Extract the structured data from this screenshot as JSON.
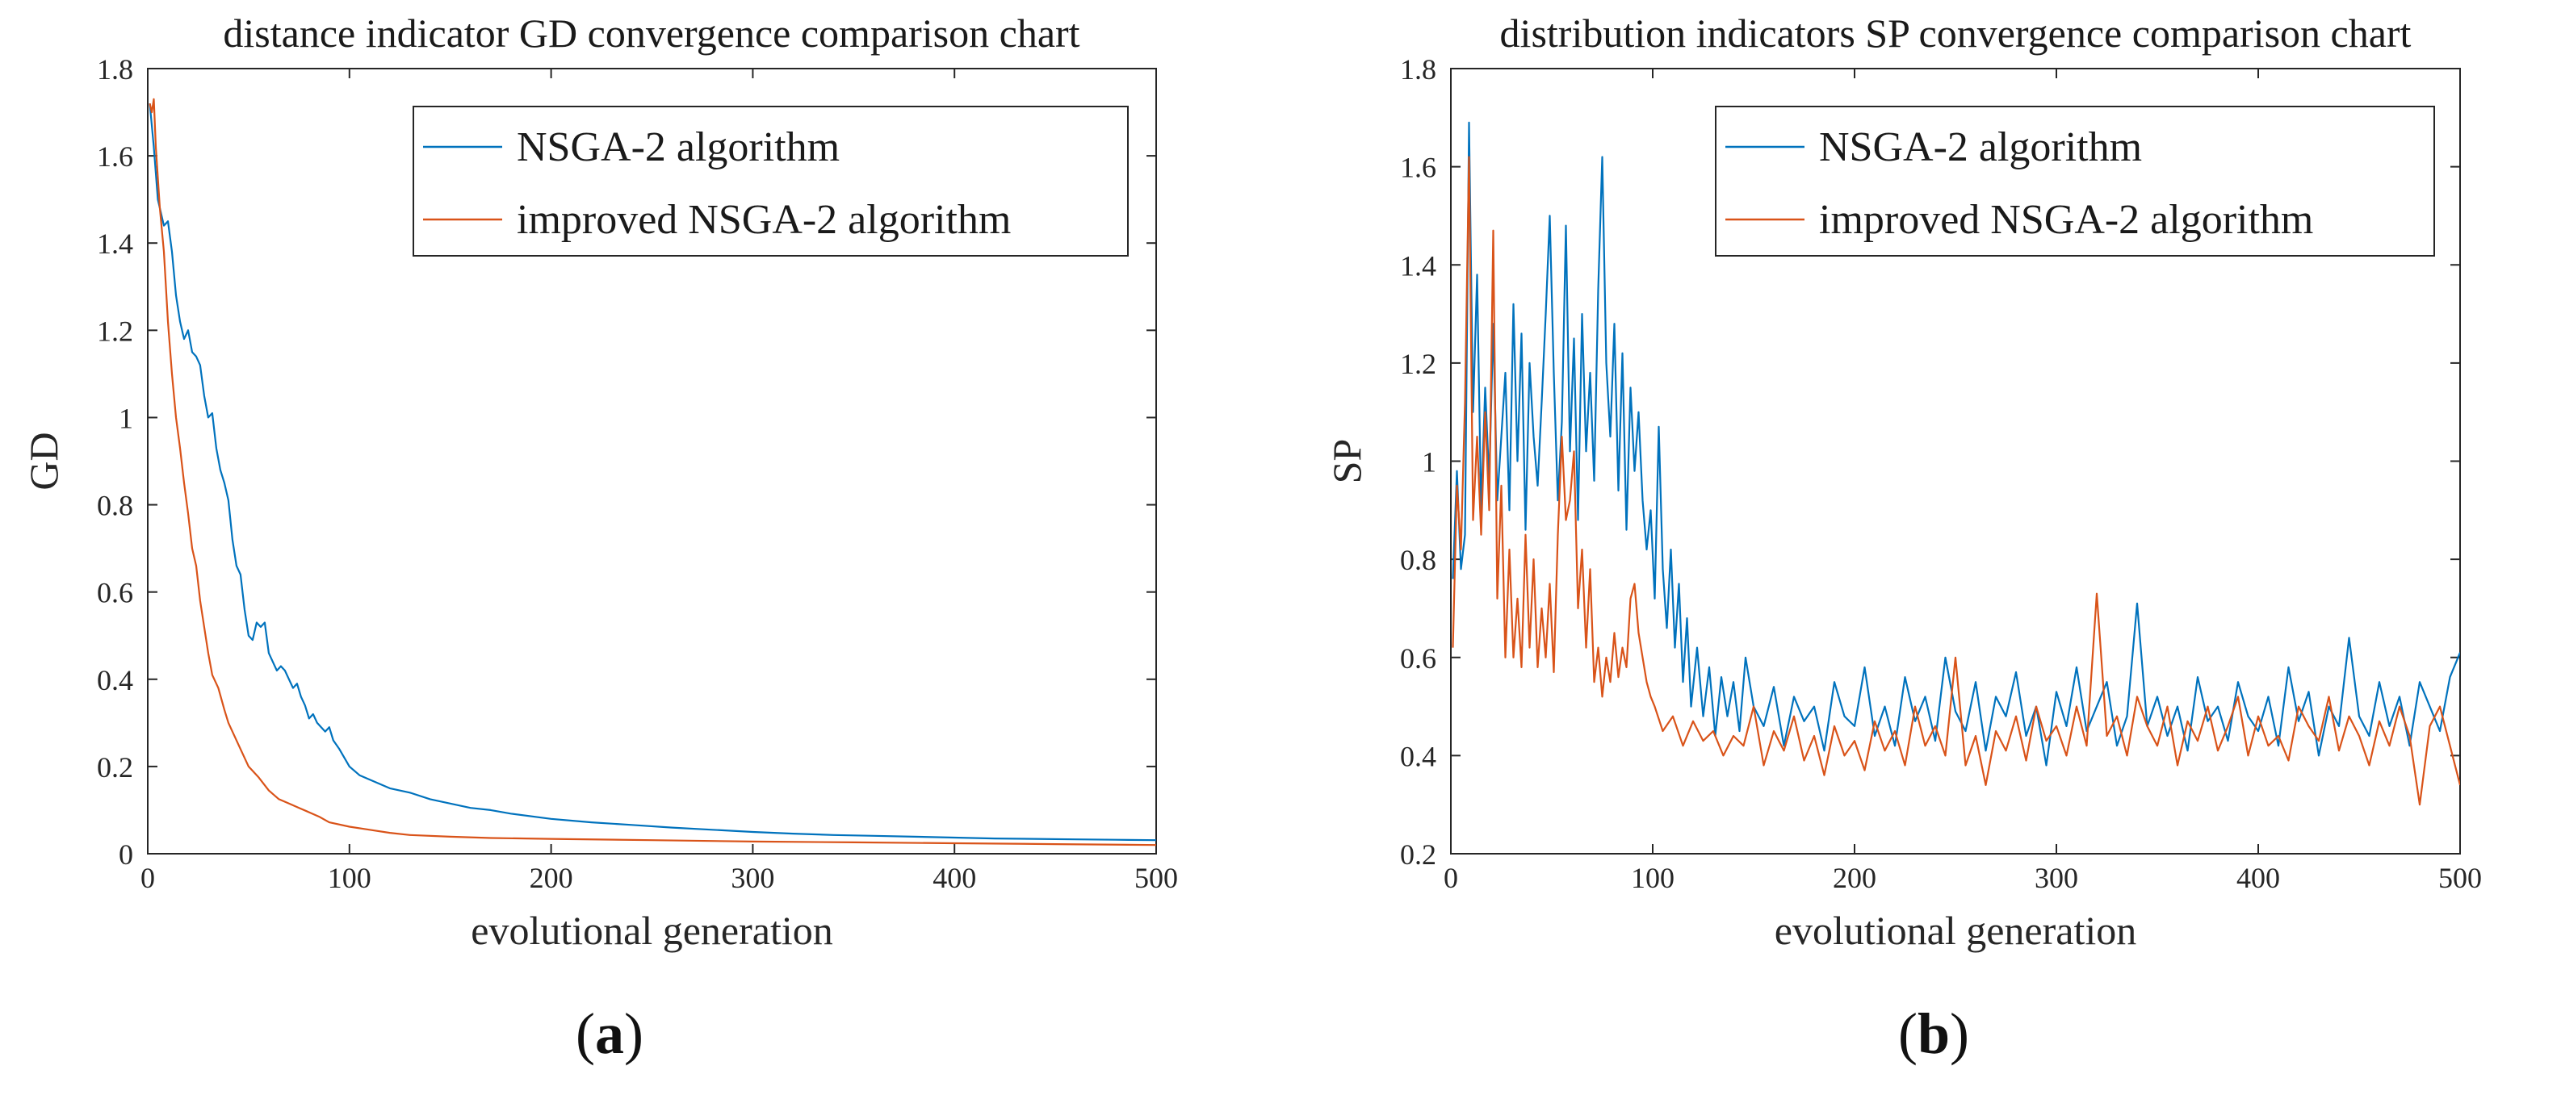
{
  "panels": [
    {
      "label_open": "(",
      "label_letter": "a",
      "label_close": ")"
    },
    {
      "label_open": "(",
      "label_letter": "b",
      "label_close": ")"
    }
  ],
  "chart_data": [
    {
      "type": "line",
      "title": "distance indicator GD convergence comparison chart",
      "xlabel": "evolutional generation",
      "ylabel": "GD",
      "xlim": [
        0,
        500
      ],
      "ylim": [
        0,
        1.8
      ],
      "xticks": [
        0,
        100,
        200,
        300,
        400,
        500
      ],
      "yticks": [
        0,
        0.2,
        0.4,
        0.6,
        0.8,
        1,
        1.2,
        1.4,
        1.6,
        1.8
      ],
      "legend_position": "top-right",
      "series": [
        {
          "name": "NSGA-2 algorithm",
          "color": "#0072BD",
          "x": [
            1,
            3,
            5,
            8,
            10,
            12,
            14,
            16,
            18,
            20,
            22,
            24,
            26,
            28,
            30,
            32,
            34,
            36,
            38,
            40,
            42,
            44,
            46,
            48,
            50,
            52,
            54,
            56,
            58,
            60,
            62,
            64,
            66,
            68,
            70,
            72,
            74,
            76,
            78,
            80,
            82,
            84,
            86,
            88,
            90,
            92,
            95,
            100,
            105,
            110,
            120,
            130,
            140,
            150,
            160,
            170,
            180,
            200,
            220,
            240,
            260,
            280,
            300,
            320,
            340,
            360,
            380,
            400,
            420,
            440,
            460,
            480,
            500
          ],
          "y": [
            1.72,
            1.62,
            1.5,
            1.44,
            1.45,
            1.38,
            1.28,
            1.22,
            1.18,
            1.2,
            1.15,
            1.14,
            1.12,
            1.05,
            1.0,
            1.01,
            0.93,
            0.88,
            0.85,
            0.81,
            0.72,
            0.66,
            0.64,
            0.56,
            0.5,
            0.49,
            0.53,
            0.52,
            0.53,
            0.46,
            0.44,
            0.42,
            0.43,
            0.42,
            0.4,
            0.38,
            0.39,
            0.36,
            0.34,
            0.31,
            0.32,
            0.3,
            0.29,
            0.28,
            0.29,
            0.26,
            0.24,
            0.2,
            0.18,
            0.17,
            0.15,
            0.14,
            0.125,
            0.115,
            0.105,
            0.1,
            0.092,
            0.08,
            0.072,
            0.066,
            0.06,
            0.055,
            0.05,
            0.046,
            0.043,
            0.041,
            0.039,
            0.037,
            0.035,
            0.034,
            0.033,
            0.032,
            0.031
          ]
        },
        {
          "name": "improved NSGA-2 algorithm",
          "color": "#D95319",
          "x": [
            1,
            2,
            3,
            4,
            6,
            8,
            10,
            12,
            14,
            16,
            18,
            20,
            22,
            24,
            26,
            28,
            30,
            32,
            35,
            38,
            40,
            45,
            50,
            55,
            60,
            65,
            70,
            75,
            80,
            85,
            90,
            100,
            110,
            120,
            130,
            150,
            170,
            200,
            250,
            300,
            350,
            400,
            450,
            500
          ],
          "y": [
            1.72,
            1.7,
            1.73,
            1.62,
            1.48,
            1.38,
            1.22,
            1.1,
            1.0,
            0.93,
            0.85,
            0.78,
            0.7,
            0.66,
            0.58,
            0.52,
            0.46,
            0.41,
            0.38,
            0.33,
            0.3,
            0.25,
            0.2,
            0.175,
            0.145,
            0.125,
            0.115,
            0.105,
            0.095,
            0.085,
            0.072,
            0.062,
            0.055,
            0.048,
            0.043,
            0.039,
            0.036,
            0.034,
            0.031,
            0.028,
            0.026,
            0.024,
            0.022,
            0.02
          ]
        }
      ]
    },
    {
      "type": "line",
      "title": "distribution indicators SP convergence comparison chart",
      "xlabel": "evolutional generation",
      "ylabel": "SP",
      "xlim": [
        0,
        500
      ],
      "ylim": [
        0.2,
        1.8
      ],
      "xticks": [
        0,
        100,
        200,
        300,
        400,
        500
      ],
      "yticks": [
        0.2,
        0.4,
        0.6,
        0.8,
        1,
        1.2,
        1.4,
        1.6,
        1.8
      ],
      "legend_position": "top-right",
      "series": [
        {
          "name": "NSGA-2 algorithm",
          "color": "#0072BD",
          "x": [
            1,
            3,
            5,
            7,
            9,
            11,
            13,
            15,
            17,
            19,
            21,
            23,
            25,
            27,
            29,
            31,
            33,
            35,
            37,
            39,
            41,
            43,
            45,
            47,
            49,
            51,
            53,
            55,
            57,
            59,
            61,
            63,
            65,
            67,
            69,
            71,
            73,
            75,
            77,
            79,
            81,
            83,
            85,
            87,
            89,
            91,
            93,
            95,
            97,
            99,
            101,
            103,
            105,
            107,
            109,
            111,
            113,
            115,
            117,
            119,
            122,
            125,
            128,
            131,
            134,
            137,
            140,
            143,
            146,
            150,
            155,
            160,
            165,
            170,
            175,
            180,
            185,
            190,
            195,
            200,
            205,
            210,
            215,
            220,
            225,
            230,
            235,
            240,
            245,
            250,
            255,
            260,
            265,
            270,
            275,
            280,
            285,
            290,
            295,
            300,
            305,
            310,
            315,
            320,
            325,
            330,
            335,
            340,
            345,
            350,
            355,
            360,
            365,
            370,
            375,
            380,
            385,
            390,
            395,
            400,
            405,
            410,
            415,
            420,
            425,
            430,
            435,
            440,
            445,
            450,
            455,
            460,
            465,
            470,
            475,
            480,
            485,
            490,
            495,
            500
          ],
          "y": [
            0.76,
            0.98,
            0.78,
            0.85,
            1.69,
            1.1,
            1.38,
            0.9,
            1.15,
            0.96,
            1.28,
            0.92,
            1.05,
            1.18,
            0.9,
            1.32,
            1.0,
            1.26,
            0.86,
            1.2,
            1.05,
            0.95,
            1.12,
            1.3,
            1.5,
            1.18,
            0.92,
            1.08,
            1.48,
            1.02,
            1.25,
            0.88,
            1.3,
            1.02,
            1.18,
            0.96,
            1.35,
            1.62,
            1.2,
            1.05,
            1.28,
            0.94,
            1.22,
            0.86,
            1.15,
            0.98,
            1.1,
            0.92,
            0.82,
            0.9,
            0.72,
            1.07,
            0.78,
            0.66,
            0.82,
            0.62,
            0.75,
            0.55,
            0.68,
            0.5,
            0.62,
            0.48,
            0.58,
            0.44,
            0.56,
            0.48,
            0.55,
            0.45,
            0.6,
            0.5,
            0.46,
            0.54,
            0.42,
            0.52,
            0.47,
            0.5,
            0.41,
            0.55,
            0.48,
            0.46,
            0.58,
            0.44,
            0.5,
            0.42,
            0.56,
            0.47,
            0.52,
            0.43,
            0.6,
            0.49,
            0.45,
            0.55,
            0.41,
            0.52,
            0.48,
            0.57,
            0.44,
            0.5,
            0.38,
            0.53,
            0.46,
            0.58,
            0.45,
            0.5,
            0.55,
            0.42,
            0.48,
            0.71,
            0.46,
            0.52,
            0.44,
            0.5,
            0.41,
            0.56,
            0.47,
            0.5,
            0.43,
            0.55,
            0.48,
            0.45,
            0.52,
            0.42,
            0.58,
            0.47,
            0.53,
            0.4,
            0.5,
            0.46,
            0.64,
            0.48,
            0.44,
            0.55,
            0.46,
            0.52,
            0.42,
            0.55,
            0.5,
            0.45,
            0.56,
            0.61
          ]
        },
        {
          "name": "improved NSGA-2 algorithm",
          "color": "#D95319",
          "x": [
            1,
            3,
            5,
            7,
            9,
            11,
            13,
            15,
            17,
            19,
            21,
            23,
            25,
            27,
            29,
            31,
            33,
            35,
            37,
            39,
            41,
            43,
            45,
            47,
            49,
            51,
            53,
            55,
            57,
            59,
            61,
            63,
            65,
            67,
            69,
            71,
            73,
            75,
            77,
            79,
            81,
            83,
            85,
            87,
            89,
            91,
            93,
            95,
            97,
            99,
            101,
            105,
            110,
            115,
            120,
            125,
            130,
            135,
            140,
            145,
            150,
            155,
            160,
            165,
            170,
            175,
            180,
            185,
            190,
            195,
            200,
            205,
            210,
            215,
            220,
            225,
            230,
            235,
            240,
            245,
            250,
            255,
            260,
            265,
            270,
            275,
            280,
            285,
            290,
            295,
            300,
            305,
            310,
            315,
            320,
            325,
            330,
            335,
            340,
            345,
            350,
            355,
            360,
            365,
            370,
            375,
            380,
            385,
            390,
            395,
            400,
            405,
            410,
            415,
            420,
            425,
            430,
            435,
            440,
            445,
            450,
            455,
            460,
            465,
            470,
            475,
            480,
            485,
            490,
            495,
            500
          ],
          "y": [
            0.62,
            0.95,
            0.82,
            1.12,
            1.62,
            0.88,
            1.05,
            0.85,
            1.1,
            0.9,
            1.47,
            0.72,
            0.95,
            0.6,
            0.82,
            0.6,
            0.72,
            0.58,
            0.85,
            0.62,
            0.8,
            0.58,
            0.7,
            0.6,
            0.75,
            0.57,
            0.85,
            1.05,
            0.88,
            0.92,
            1.02,
            0.7,
            0.82,
            0.62,
            0.78,
            0.55,
            0.62,
            0.52,
            0.6,
            0.55,
            0.65,
            0.56,
            0.62,
            0.58,
            0.72,
            0.75,
            0.65,
            0.6,
            0.55,
            0.52,
            0.5,
            0.45,
            0.48,
            0.42,
            0.47,
            0.43,
            0.45,
            0.4,
            0.44,
            0.42,
            0.5,
            0.38,
            0.45,
            0.41,
            0.48,
            0.39,
            0.44,
            0.36,
            0.46,
            0.4,
            0.43,
            0.37,
            0.47,
            0.41,
            0.45,
            0.38,
            0.5,
            0.42,
            0.46,
            0.4,
            0.6,
            0.38,
            0.44,
            0.34,
            0.45,
            0.41,
            0.48,
            0.39,
            0.5,
            0.43,
            0.46,
            0.4,
            0.5,
            0.42,
            0.73,
            0.44,
            0.48,
            0.4,
            0.52,
            0.46,
            0.42,
            0.5,
            0.38,
            0.47,
            0.43,
            0.5,
            0.41,
            0.46,
            0.52,
            0.4,
            0.48,
            0.42,
            0.44,
            0.39,
            0.5,
            0.46,
            0.43,
            0.52,
            0.41,
            0.48,
            0.44,
            0.38,
            0.47,
            0.42,
            0.5,
            0.44,
            0.3,
            0.46,
            0.5,
            0.42,
            0.34
          ]
        }
      ]
    }
  ]
}
